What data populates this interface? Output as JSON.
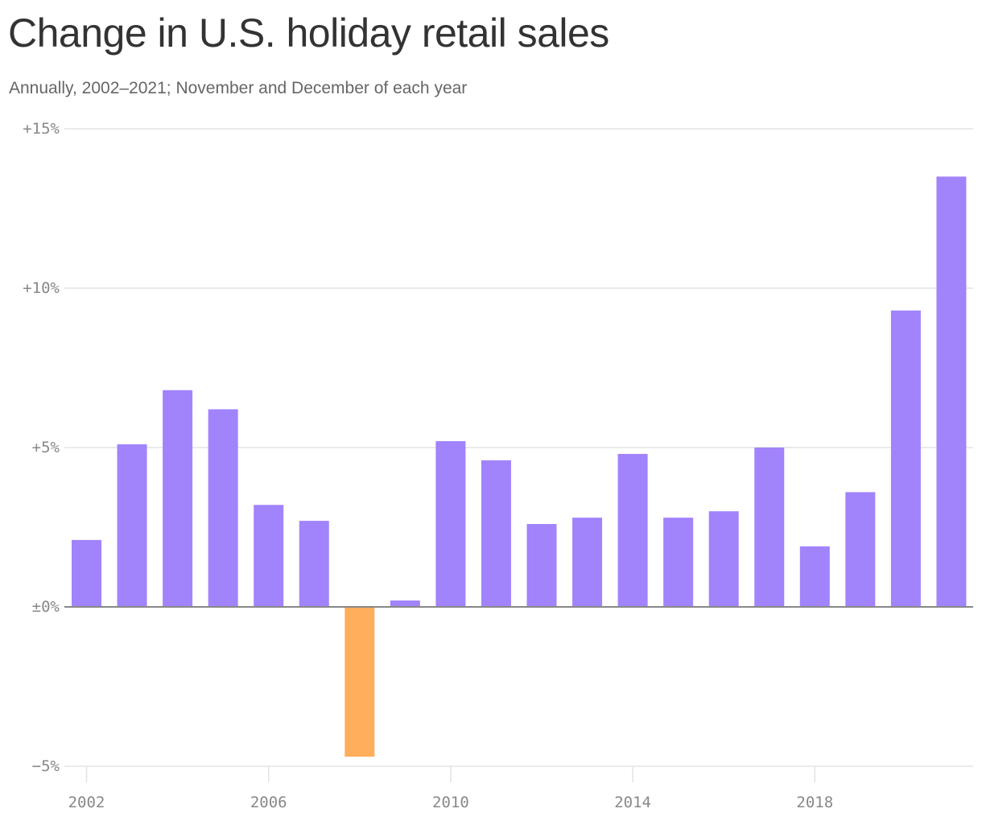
{
  "title": "Change in U.S. holiday retail sales",
  "subtitle": "Annually, 2002–2021; November and December of each year",
  "colors": {
    "positive": "#a183fb",
    "negative": "#ffae5b",
    "grid": "#e3e3e3",
    "zero": "#888888",
    "tick": "#888888"
  },
  "chart_data": {
    "type": "bar",
    "title": "Change in U.S. holiday retail sales",
    "subtitle": "Annually, 2002–2021; November and December of each year",
    "categories": [
      2002,
      2003,
      2004,
      2005,
      2006,
      2007,
      2008,
      2009,
      2010,
      2011,
      2012,
      2013,
      2014,
      2015,
      2016,
      2017,
      2018,
      2019,
      2020,
      2021
    ],
    "values": [
      2.1,
      5.1,
      6.8,
      6.2,
      3.2,
      2.7,
      -4.7,
      0.2,
      5.2,
      4.6,
      2.6,
      2.8,
      4.8,
      2.8,
      3.0,
      5.0,
      1.9,
      3.6,
      9.3,
      13.5
    ],
    "ylim": [
      -5,
      15
    ],
    "y_ticks": [
      15,
      10,
      5,
      0,
      -5
    ],
    "y_tick_labels": [
      "+15%",
      "+10%",
      "+5%",
      "±0%",
      "−5%"
    ],
    "x_ticks": [
      2002,
      2006,
      2010,
      2014,
      2018
    ],
    "x_tick_labels": [
      "2002",
      "2006",
      "2010",
      "2014",
      "2018"
    ],
    "grid": true,
    "xlabel": "",
    "ylabel": ""
  }
}
